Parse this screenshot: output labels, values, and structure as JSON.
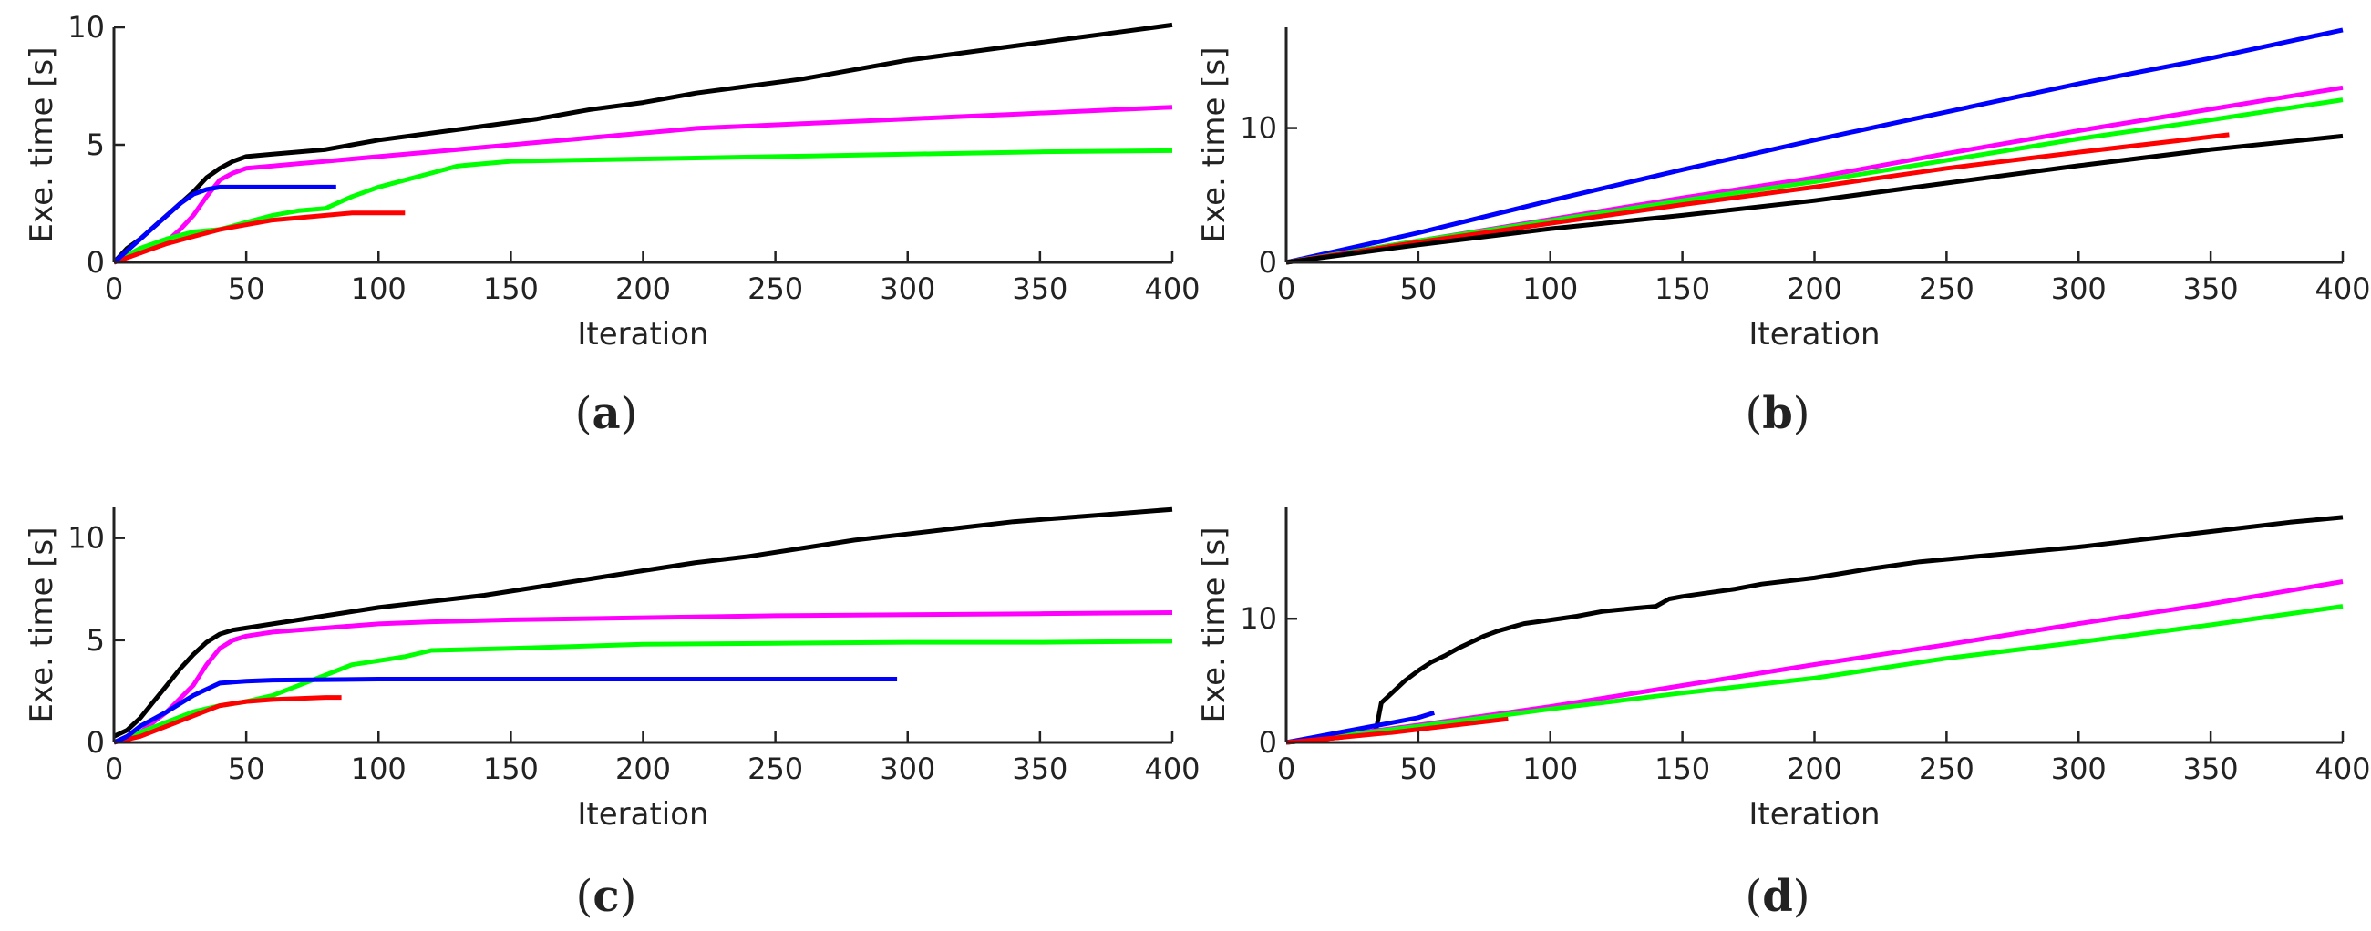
{
  "chart_data": [
    {
      "type": "line",
      "panel_label": "a",
      "xlabel": "Iteration",
      "ylabel": "Exe. time [s]",
      "xlim": [
        0,
        400
      ],
      "ylim": [
        0,
        10
      ],
      "xticks": [
        0,
        50,
        100,
        150,
        200,
        250,
        300,
        350,
        400
      ],
      "yticks": [
        0,
        5,
        10
      ],
      "grid": false,
      "series": [
        {
          "color": "#000000",
          "x": [
            0,
            5,
            10,
            15,
            20,
            25,
            30,
            35,
            40,
            45,
            50,
            60,
            70,
            80,
            90,
            100,
            120,
            140,
            160,
            180,
            200,
            220,
            240,
            260,
            280,
            300,
            320,
            340,
            360,
            380,
            400
          ],
          "y": [
            0,
            0.6,
            1.0,
            1.5,
            2.0,
            2.5,
            3.0,
            3.6,
            4.0,
            4.3,
            4.5,
            4.6,
            4.7,
            4.8,
            5.0,
            5.2,
            5.5,
            5.8,
            6.1,
            6.5,
            6.8,
            7.2,
            7.5,
            7.8,
            8.2,
            8.6,
            8.9,
            9.2,
            9.5,
            9.8,
            10.1
          ]
        },
        {
          "color": "#ff00ff",
          "x": [
            0,
            10,
            20,
            25,
            30,
            35,
            40,
            45,
            50,
            60,
            70,
            80,
            90,
            100,
            120,
            140,
            160,
            180,
            200,
            220,
            240,
            260,
            280,
            300,
            320,
            340,
            360,
            380,
            400
          ],
          "y": [
            0,
            0.4,
            0.9,
            1.4,
            2.0,
            2.8,
            3.5,
            3.8,
            4.0,
            4.1,
            4.2,
            4.3,
            4.4,
            4.5,
            4.7,
            4.9,
            5.1,
            5.3,
            5.5,
            5.7,
            5.8,
            5.9,
            6.0,
            6.1,
            6.2,
            6.3,
            6.4,
            6.5,
            6.6
          ]
        },
        {
          "color": "#00ff00",
          "x": [
            0,
            10,
            20,
            30,
            40,
            50,
            60,
            70,
            80,
            90,
            100,
            110,
            120,
            130,
            140,
            150,
            175,
            200,
            250,
            300,
            350,
            400
          ],
          "y": [
            0,
            0.6,
            1.0,
            1.3,
            1.4,
            1.7,
            2.0,
            2.2,
            2.3,
            2.8,
            3.2,
            3.5,
            3.8,
            4.1,
            4.2,
            4.3,
            4.35,
            4.4,
            4.5,
            4.6,
            4.7,
            4.75
          ]
        },
        {
          "color": "#ff0000",
          "x": [
            0,
            10,
            20,
            30,
            40,
            50,
            60,
            70,
            80,
            90,
            100,
            110
          ],
          "y": [
            0,
            0.4,
            0.8,
            1.1,
            1.4,
            1.6,
            1.8,
            1.9,
            2.0,
            2.1,
            2.1,
            2.1
          ]
        },
        {
          "color": "#0000ff",
          "x": [
            0,
            5,
            10,
            15,
            20,
            25,
            30,
            35,
            40,
            45,
            50,
            84
          ],
          "y": [
            0,
            0.5,
            1.0,
            1.5,
            2.0,
            2.5,
            2.9,
            3.1,
            3.2,
            3.2,
            3.2,
            3.2
          ]
        }
      ]
    },
    {
      "type": "line",
      "panel_label": "b",
      "xlabel": "Iteration",
      "ylabel": "Exe. time [s]",
      "xlim": [
        0,
        400
      ],
      "ylim": [
        0,
        17.5
      ],
      "xticks": [
        0,
        50,
        100,
        150,
        200,
        250,
        300,
        350,
        400
      ],
      "yticks": [
        0,
        10
      ],
      "grid": false,
      "series": [
        {
          "color": "#0000ff",
          "x": [
            0,
            50,
            100,
            150,
            200,
            250,
            300,
            350,
            400
          ],
          "y": [
            0,
            2.2,
            4.6,
            6.9,
            9.1,
            11.2,
            13.3,
            15.2,
            17.3
          ]
        },
        {
          "color": "#ff00ff",
          "x": [
            0,
            50,
            100,
            150,
            200,
            250,
            300,
            350,
            400
          ],
          "y": [
            0,
            1.6,
            3.2,
            4.8,
            6.3,
            8.1,
            9.8,
            11.4,
            13.0
          ]
        },
        {
          "color": "#00ff00",
          "x": [
            0,
            50,
            100,
            150,
            200,
            250,
            300,
            350,
            400
          ],
          "y": [
            0,
            1.6,
            3.1,
            4.6,
            6.0,
            7.6,
            9.2,
            10.6,
            12.1
          ]
        },
        {
          "color": "#ff0000",
          "x": [
            0,
            50,
            100,
            150,
            200,
            250,
            300,
            357
          ],
          "y": [
            0,
            1.5,
            2.9,
            4.3,
            5.6,
            7.0,
            8.2,
            9.5
          ]
        },
        {
          "color": "#000000",
          "x": [
            0,
            50,
            100,
            150,
            200,
            250,
            300,
            350,
            400
          ],
          "y": [
            0,
            1.3,
            2.5,
            3.5,
            4.6,
            5.9,
            7.2,
            8.4,
            9.4
          ]
        }
      ]
    },
    {
      "type": "line",
      "panel_label": "c",
      "xlabel": "Iteration",
      "ylabel": "Exe. time [s]",
      "xlim": [
        0,
        400
      ],
      "ylim": [
        0,
        11.5
      ],
      "xticks": [
        0,
        50,
        100,
        150,
        200,
        250,
        300,
        350,
        400
      ],
      "yticks": [
        0,
        5,
        10
      ],
      "grid": false,
      "series": [
        {
          "color": "#000000",
          "x": [
            0,
            5,
            10,
            15,
            20,
            25,
            30,
            35,
            40,
            45,
            50,
            60,
            70,
            80,
            90,
            100,
            120,
            140,
            160,
            180,
            200,
            220,
            240,
            260,
            280,
            300,
            320,
            340,
            360,
            380,
            400
          ],
          "y": [
            0.3,
            0.6,
            1.2,
            2.0,
            2.8,
            3.6,
            4.3,
            4.9,
            5.3,
            5.5,
            5.6,
            5.8,
            6.0,
            6.2,
            6.4,
            6.6,
            6.9,
            7.2,
            7.6,
            8.0,
            8.4,
            8.8,
            9.1,
            9.5,
            9.9,
            10.2,
            10.5,
            10.8,
            11.0,
            11.2,
            11.4
          ]
        },
        {
          "color": "#ff00ff",
          "x": [
            0,
            10,
            20,
            30,
            35,
            40,
            45,
            50,
            60,
            70,
            80,
            90,
            100,
            120,
            150,
            200,
            250,
            300,
            350,
            400
          ],
          "y": [
            0,
            0.5,
            1.5,
            2.8,
            3.8,
            4.6,
            5.0,
            5.2,
            5.4,
            5.5,
            5.6,
            5.7,
            5.8,
            5.9,
            6.0,
            6.1,
            6.2,
            6.25,
            6.3,
            6.35
          ]
        },
        {
          "color": "#00ff00",
          "x": [
            0,
            10,
            20,
            30,
            40,
            50,
            60,
            70,
            80,
            90,
            100,
            110,
            120,
            150,
            200,
            250,
            300,
            350,
            400
          ],
          "y": [
            0,
            0.5,
            1.0,
            1.5,
            1.8,
            2.0,
            2.3,
            2.8,
            3.3,
            3.8,
            4.0,
            4.2,
            4.5,
            4.6,
            4.8,
            4.85,
            4.9,
            4.9,
            4.95
          ]
        },
        {
          "color": "#ff0000",
          "x": [
            0,
            10,
            20,
            30,
            40,
            50,
            60,
            70,
            80,
            86
          ],
          "y": [
            0,
            0.3,
            0.8,
            1.3,
            1.8,
            2.0,
            2.1,
            2.15,
            2.2,
            2.2
          ]
        },
        {
          "color": "#0000ff",
          "x": [
            0,
            5,
            10,
            20,
            30,
            40,
            50,
            60,
            100,
            150,
            200,
            250,
            296
          ],
          "y": [
            0,
            0.3,
            0.8,
            1.5,
            2.3,
            2.9,
            3.0,
            3.05,
            3.1,
            3.1,
            3.1,
            3.1,
            3.1
          ]
        }
      ]
    },
    {
      "type": "line",
      "panel_label": "d",
      "xlabel": "Iteration",
      "ylabel": "Exe. time [s]",
      "xlim": [
        0,
        400
      ],
      "ylim": [
        0,
        19
      ],
      "xticks": [
        0,
        50,
        100,
        150,
        200,
        250,
        300,
        350,
        400
      ],
      "yticks": [
        0,
        10
      ],
      "grid": false,
      "series": [
        {
          "color": "#000000",
          "x": [
            0,
            10,
            20,
            30,
            34,
            36,
            40,
            45,
            50,
            55,
            60,
            65,
            70,
            75,
            80,
            85,
            90,
            100,
            110,
            120,
            130,
            140,
            145,
            150,
            160,
            170,
            180,
            200,
            220,
            240,
            260,
            280,
            300,
            320,
            340,
            360,
            380,
            400
          ],
          "y": [
            0,
            0.2,
            0.4,
            0.7,
            1.0,
            3.2,
            4.0,
            5.0,
            5.8,
            6.5,
            7.0,
            7.6,
            8.1,
            8.6,
            9.0,
            9.3,
            9.6,
            9.9,
            10.2,
            10.6,
            10.8,
            11.0,
            11.6,
            11.8,
            12.1,
            12.4,
            12.8,
            13.3,
            14.0,
            14.6,
            15.0,
            15.4,
            15.8,
            16.3,
            16.8,
            17.3,
            17.8,
            18.2
          ]
        },
        {
          "color": "#ff00ff",
          "x": [
            0,
            50,
            100,
            150,
            200,
            250,
            300,
            350,
            400
          ],
          "y": [
            0,
            1.4,
            2.9,
            4.6,
            6.3,
            7.9,
            9.6,
            11.2,
            13.0
          ]
        },
        {
          "color": "#00ff00",
          "x": [
            0,
            50,
            100,
            150,
            200,
            250,
            300,
            350,
            400
          ],
          "y": [
            0,
            1.3,
            2.7,
            4.0,
            5.2,
            6.8,
            8.1,
            9.5,
            11.0
          ]
        },
        {
          "color": "#0000ff",
          "x": [
            0,
            10,
            20,
            30,
            40,
            50,
            56
          ],
          "y": [
            0,
            0.4,
            0.8,
            1.2,
            1.6,
            2.0,
            2.4
          ]
        },
        {
          "color": "#ff0000",
          "x": [
            0,
            20,
            40,
            60,
            84
          ],
          "y": [
            0,
            0.4,
            0.8,
            1.3,
            1.9
          ]
        }
      ]
    }
  ]
}
